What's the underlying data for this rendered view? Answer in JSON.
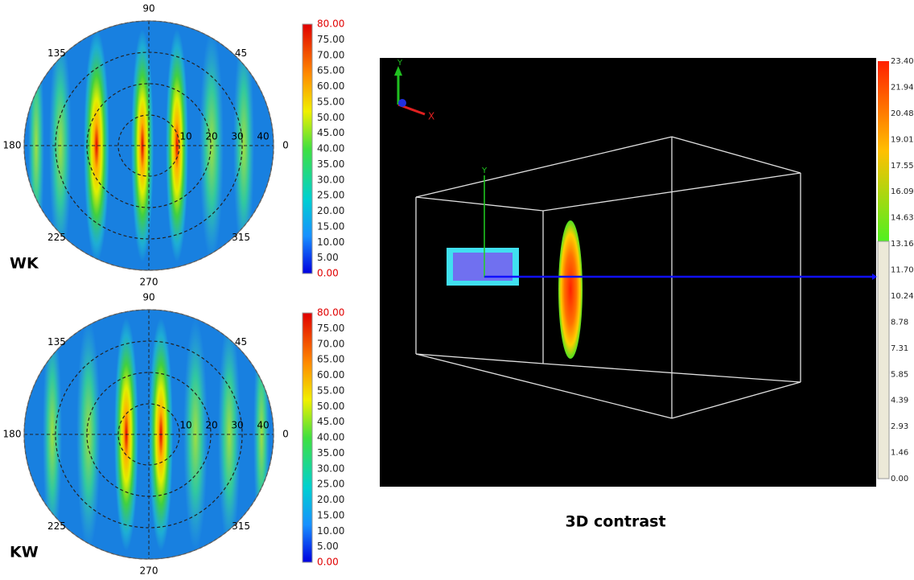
{
  "panels": [
    {
      "label": "WK",
      "angle_labels": [
        "90",
        "45",
        "0",
        "315",
        "270",
        "225",
        "180",
        "135"
      ],
      "radial_labels": [
        "10",
        "20",
        "30",
        "40"
      ],
      "colorbar_labels": [
        "80.00",
        "75.00",
        "70.00",
        "65.00",
        "60.00",
        "55.00",
        "50.00",
        "45.00",
        "40.00",
        "35.00",
        "30.00",
        "25.00",
        "20.00",
        "15.00",
        "10.00",
        "5.00",
        "0.00"
      ]
    },
    {
      "label": "KW",
      "angle_labels": [
        "90",
        "45",
        "0",
        "315",
        "270",
        "225",
        "180",
        "135"
      ],
      "radial_labels": [
        "10",
        "20",
        "30",
        "40"
      ],
      "colorbar_labels": [
        "80.00",
        "75.00",
        "70.00",
        "65.00",
        "60.00",
        "55.00",
        "50.00",
        "45.00",
        "40.00",
        "35.00",
        "30.00",
        "25.00",
        "20.00",
        "15.00",
        "10.00",
        "5.00",
        "0.00"
      ]
    }
  ],
  "view3d": {
    "triad_labels": {
      "y": "Y",
      "x": "X"
    },
    "box_axis_label": "Y",
    "colorbar_labels": [
      "23.40",
      "21.94",
      "20.48",
      "19.01",
      "17.55",
      "16.09",
      "14.63",
      "13.16",
      "11.70",
      "10.24",
      "8.78",
      "7.31",
      "5.85",
      "4.39",
      "2.93",
      "1.46",
      "0.00"
    ],
    "caption": "3D contrast"
  }
}
